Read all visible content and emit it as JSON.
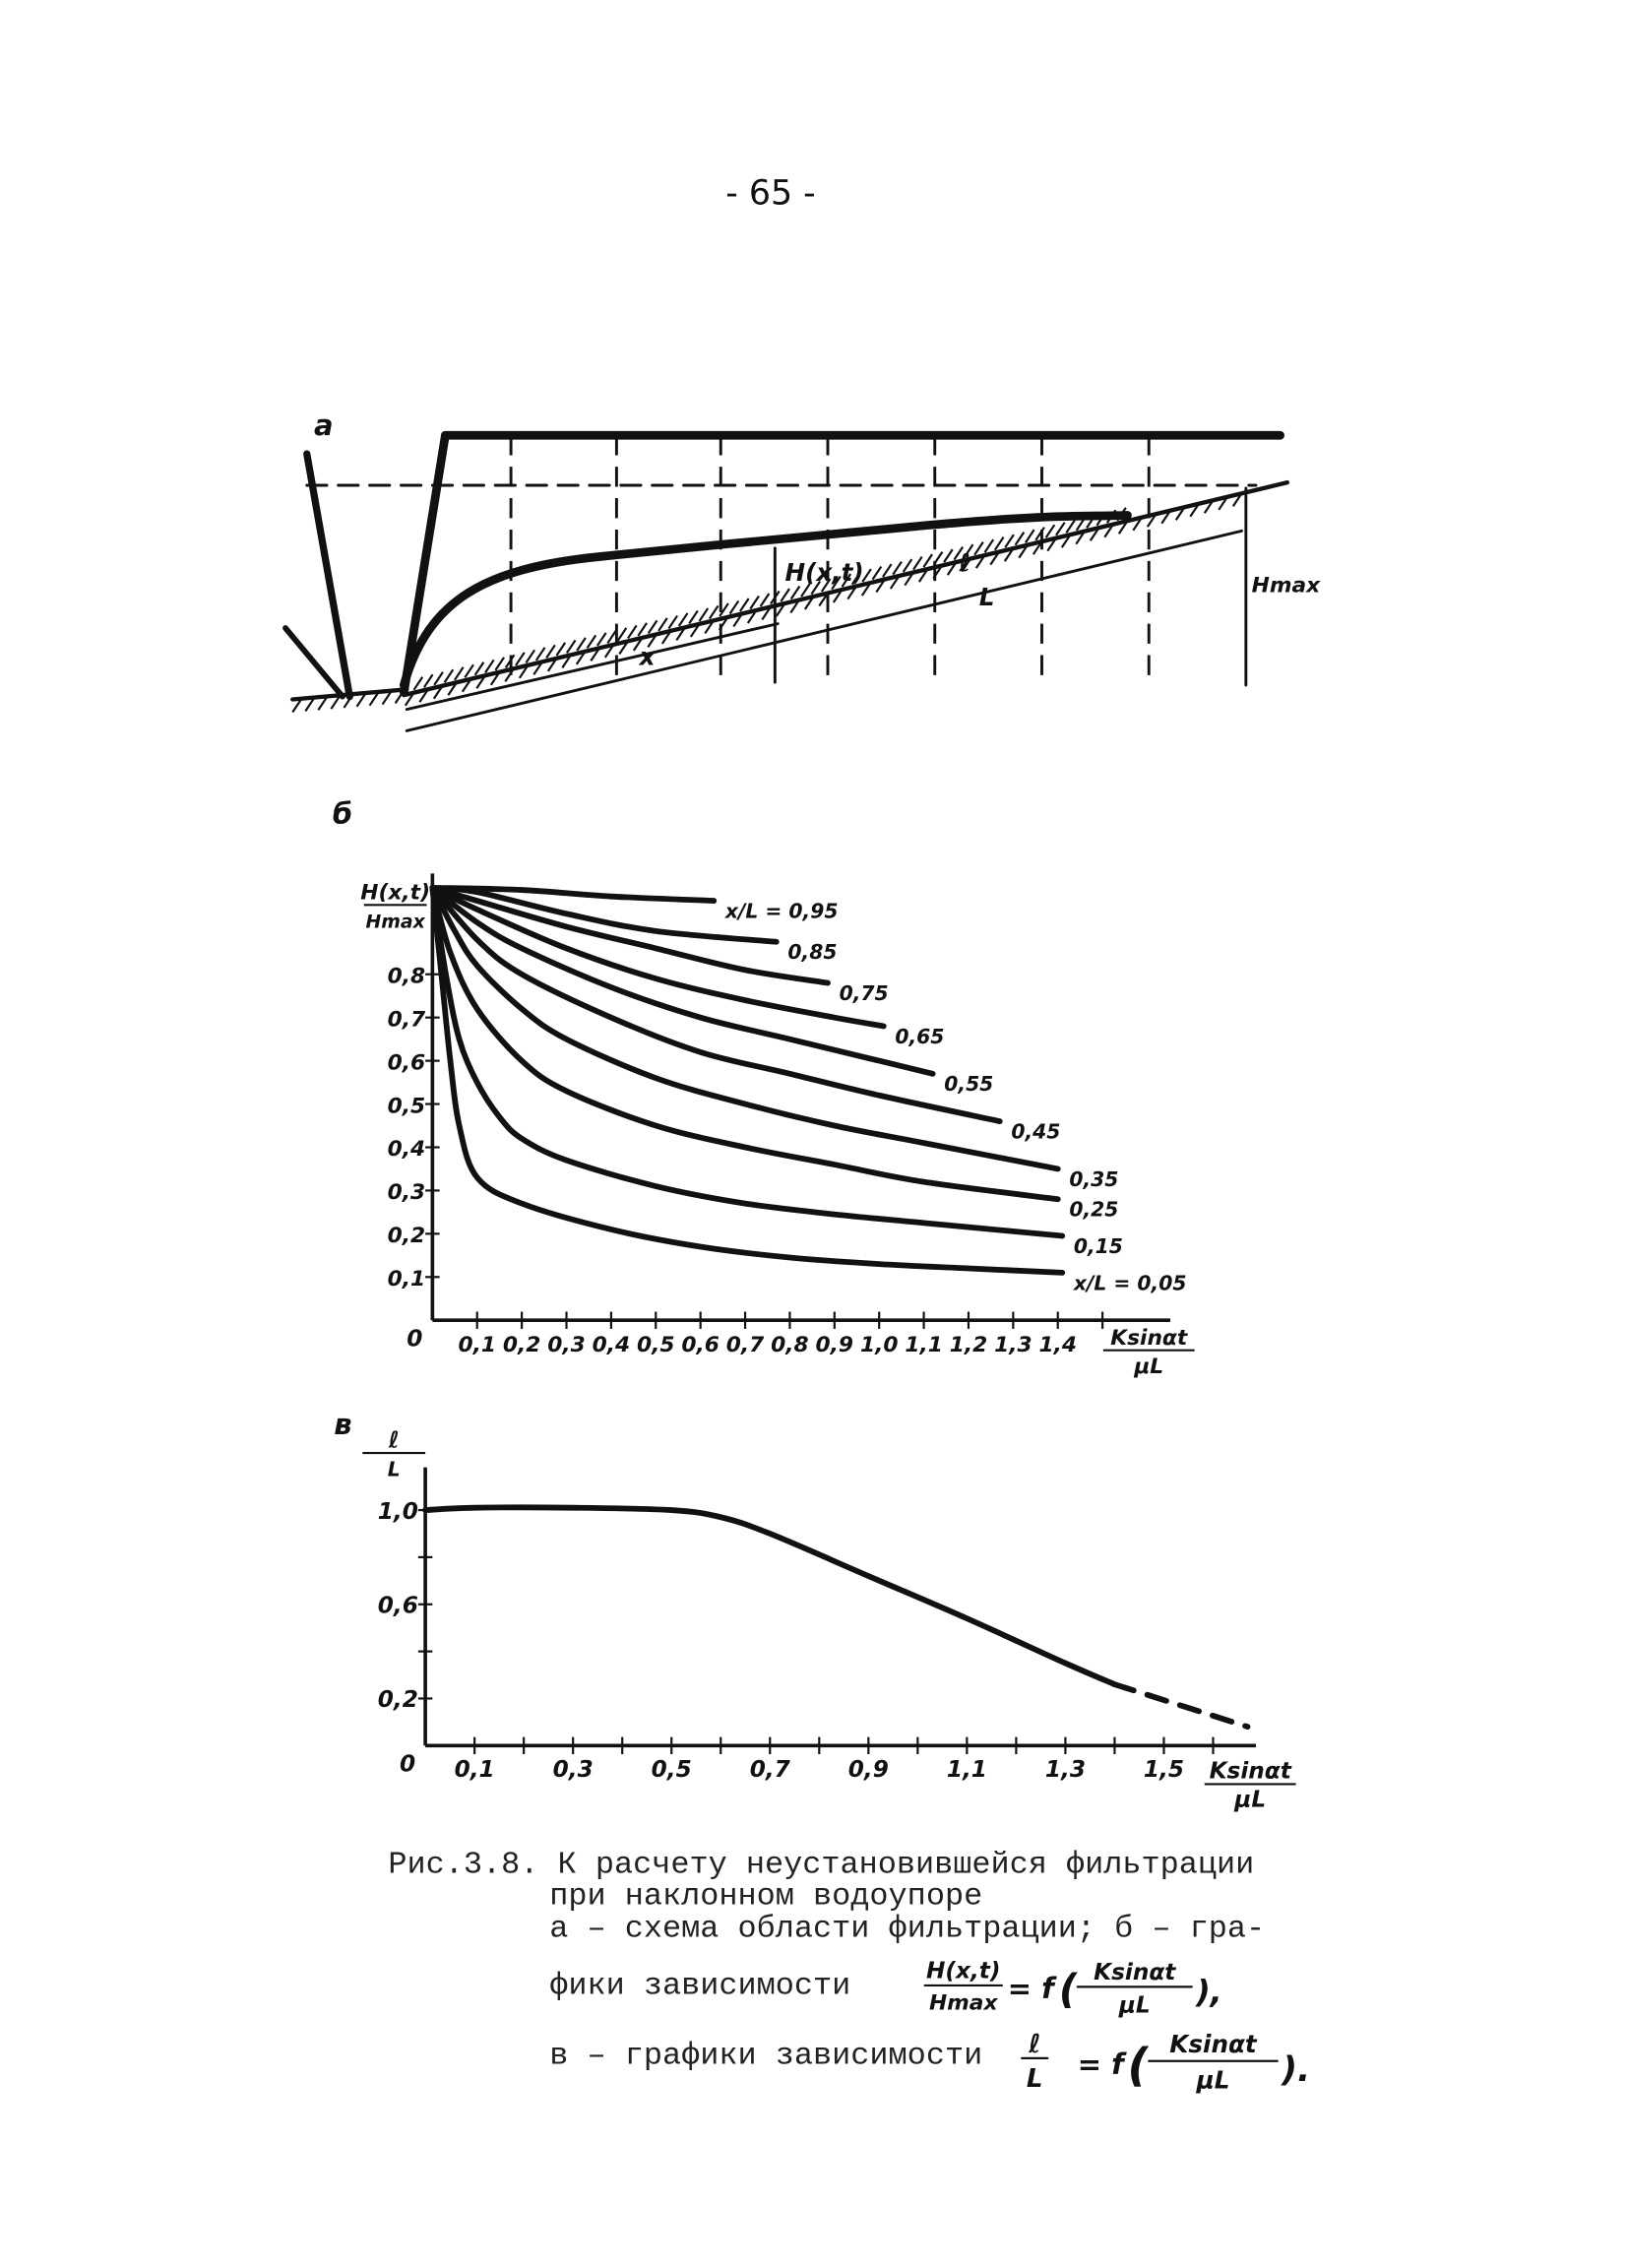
{
  "page_number": "- 65 -",
  "figure_a": {
    "panel_label": "а",
    "labels": {
      "head": "H(x,t)",
      "l": "ℓ",
      "L": "L",
      "x": "x",
      "hmax": "Hmax"
    }
  },
  "chart_data": [
    {
      "type": "line",
      "panel_label": "б",
      "ylabel_num": "H(x,t)",
      "ylabel_den": "Hmax",
      "xlabel_num": "Ksinαt",
      "xlabel_den": "μL",
      "xlim": [
        0,
        1.5
      ],
      "ylim": [
        0,
        1.0
      ],
      "origin_label": "0",
      "x_ticks": [
        0.1,
        0.2,
        0.3,
        0.4,
        0.5,
        0.6,
        0.7,
        0.8,
        0.9,
        1.0,
        1.1,
        1.2,
        1.3,
        1.4,
        1.5
      ],
      "x_tick_labels": [
        "0,1",
        "0,2",
        "0,3",
        "0,4",
        "0,5",
        "0,6",
        "0,7",
        "0,8",
        "0,9",
        "1,0",
        "1,1",
        "1,2",
        "1,3",
        "1,4"
      ],
      "y_ticks": [
        0.1,
        0.2,
        0.3,
        0.4,
        0.5,
        0.6,
        0.7,
        0.8
      ],
      "y_tick_labels": [
        "0,1",
        "0,2",
        "0,3",
        "0,4",
        "0,5",
        "0,6",
        "0,7",
        "0,8"
      ],
      "series_param": "x/L",
      "series": [
        {
          "name": "0,95",
          "label": "x/L = 0,95",
          "points": [
            [
              0,
              1
            ],
            [
              0.2,
              0.995
            ],
            [
              0.4,
              0.98
            ],
            [
              0.63,
              0.97
            ]
          ]
        },
        {
          "name": "0,85",
          "label": "0,85",
          "points": [
            [
              0,
              1
            ],
            [
              0.1,
              0.99
            ],
            [
              0.3,
              0.94
            ],
            [
              0.5,
              0.9
            ],
            [
              0.77,
              0.875
            ]
          ]
        },
        {
          "name": "0,75",
          "label": "0,75",
          "points": [
            [
              0,
              1
            ],
            [
              0.1,
              0.97
            ],
            [
              0.3,
              0.91
            ],
            [
              0.5,
              0.86
            ],
            [
              0.7,
              0.81
            ],
            [
              0.885,
              0.78
            ]
          ]
        },
        {
          "name": "0,65",
          "label": "0,65",
          "points": [
            [
              0,
              1
            ],
            [
              0.1,
              0.95
            ],
            [
              0.3,
              0.86
            ],
            [
              0.5,
              0.79
            ],
            [
              0.7,
              0.74
            ],
            [
              0.9,
              0.7
            ],
            [
              1.01,
              0.68
            ]
          ]
        },
        {
          "name": "0,55",
          "label": "0,55",
          "points": [
            [
              0,
              1
            ],
            [
              0.1,
              0.92
            ],
            [
              0.2,
              0.86
            ],
            [
              0.4,
              0.77
            ],
            [
              0.6,
              0.7
            ],
            [
              0.8,
              0.65
            ],
            [
              1.0,
              0.6
            ],
            [
              1.12,
              0.57
            ]
          ]
        },
        {
          "name": "0,45",
          "label": "0,45",
          "points": [
            [
              0,
              1
            ],
            [
              0.1,
              0.88
            ],
            [
              0.2,
              0.8
            ],
            [
              0.4,
              0.7
            ],
            [
              0.6,
              0.62
            ],
            [
              0.8,
              0.57
            ],
            [
              1.0,
              0.52
            ],
            [
              1.27,
              0.46
            ]
          ]
        },
        {
          "name": "0,35",
          "label": "0,35",
          "points": [
            [
              0,
              1
            ],
            [
              0.05,
              0.9
            ],
            [
              0.1,
              0.82
            ],
            [
              0.2,
              0.72
            ],
            [
              0.3,
              0.65
            ],
            [
              0.5,
              0.56
            ],
            [
              0.7,
              0.5
            ],
            [
              0.9,
              0.45
            ],
            [
              1.1,
              0.41
            ],
            [
              1.4,
              0.35
            ]
          ]
        },
        {
          "name": "0,25",
          "label": "0,25",
          "points": [
            [
              0,
              1
            ],
            [
              0.04,
              0.85
            ],
            [
              0.1,
              0.72
            ],
            [
              0.2,
              0.6
            ],
            [
              0.3,
              0.53
            ],
            [
              0.5,
              0.45
            ],
            [
              0.7,
              0.4
            ],
            [
              0.9,
              0.36
            ],
            [
              1.1,
              0.32
            ],
            [
              1.4,
              0.28
            ]
          ]
        },
        {
          "name": "0,15",
          "label": "0,15",
          "points": [
            [
              0,
              1
            ],
            [
              0.03,
              0.8
            ],
            [
              0.06,
              0.65
            ],
            [
              0.1,
              0.55
            ],
            [
              0.15,
              0.47
            ],
            [
              0.2,
              0.42
            ],
            [
              0.3,
              0.37
            ],
            [
              0.5,
              0.31
            ],
            [
              0.7,
              0.27
            ],
            [
              0.9,
              0.245
            ],
            [
              1.1,
              0.225
            ],
            [
              1.41,
              0.195
            ]
          ]
        },
        {
          "name": "0,05",
          "label": "x/L = 0,05",
          "points": [
            [
              0,
              1
            ],
            [
              0.02,
              0.8
            ],
            [
              0.04,
              0.6
            ],
            [
              0.06,
              0.45
            ],
            [
              0.1,
              0.33
            ],
            [
              0.2,
              0.27
            ],
            [
              0.4,
              0.21
            ],
            [
              0.6,
              0.17
            ],
            [
              0.8,
              0.145
            ],
            [
              1.0,
              0.13
            ],
            [
              1.2,
              0.12
            ],
            [
              1.41,
              0.11
            ]
          ]
        }
      ]
    },
    {
      "type": "line",
      "panel_label": "в",
      "ylabel_num": "ℓ",
      "ylabel_den": "L",
      "xlabel_num": "Ksinαt",
      "xlabel_den": "μL",
      "xlim": [
        0,
        1.7
      ],
      "ylim": [
        0,
        1.1
      ],
      "origin_label": "0",
      "x_ticks": [
        0.1,
        0.2,
        0.3,
        0.4,
        0.5,
        0.6,
        0.7,
        0.8,
        0.9,
        1.0,
        1.1,
        1.2,
        1.3,
        1.4,
        1.5,
        1.6
      ],
      "x_tick_label_values": [
        0.1,
        0.3,
        0.5,
        0.7,
        0.9,
        1.1,
        1.3,
        1.5
      ],
      "x_tick_labels": [
        "0,1",
        "0,3",
        "0,5",
        "0,7",
        "0,9",
        "1,1",
        "1,3",
        "1,5"
      ],
      "y_ticks": [
        0.2,
        0.4,
        0.6,
        0.8,
        1.0
      ],
      "y_tick_label_values": [
        1.0,
        0.6,
        0.2
      ],
      "y_tick_labels": [
        "1,0",
        "0,6",
        "0,2"
      ],
      "series": [
        {
          "name": "ℓ/L",
          "style": "solid",
          "points": [
            [
              0,
              1.0
            ],
            [
              0.1,
              1.01
            ],
            [
              0.3,
              1.01
            ],
            [
              0.5,
              1.0
            ],
            [
              0.6,
              0.97
            ],
            [
              0.7,
              0.9
            ],
            [
              0.9,
              0.72
            ],
            [
              1.1,
              0.54
            ],
            [
              1.3,
              0.35
            ],
            [
              1.4,
              0.26
            ]
          ]
        },
        {
          "name": "ℓ/L (extrapolated)",
          "style": "dashed",
          "points": [
            [
              1.4,
              0.26
            ],
            [
              1.67,
              0.08
            ]
          ]
        }
      ]
    }
  ],
  "caption": {
    "line1": "Рис.3.8. К расчету неустановившейся фильтрации",
    "line2": "при наклонном водоупоре",
    "line3": "а – схема области фильтрации; б – гра-",
    "line4": "фики зависимости",
    "line5": "в – графики зависимости",
    "f1_num": "H(x,t)",
    "f1_den": "Hmax",
    "f_eq": "= f",
    "f_arg_num": "Ksinαt",
    "f_arg_den": "μL",
    "f1_end": "),",
    "f2_num": "ℓ",
    "f2_den": "L",
    "f2_end": ")."
  }
}
